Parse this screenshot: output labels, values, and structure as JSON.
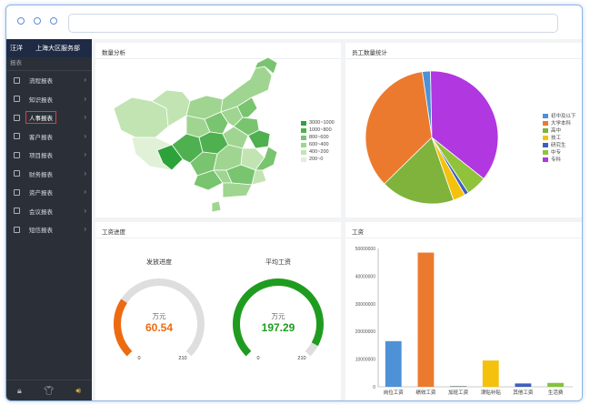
{
  "sidebar": {
    "user": "汪洋",
    "org": "上海大区服务部",
    "section": "报表",
    "items": [
      {
        "label": "流程报表",
        "icon": "doc-icon"
      },
      {
        "label": "知识报表",
        "icon": "doc-icon"
      },
      {
        "label": "人事报表",
        "icon": "person-doc-icon",
        "active": true
      },
      {
        "label": "客户报表",
        "icon": "doc-icon"
      },
      {
        "label": "项目报表",
        "icon": "doc-icon"
      },
      {
        "label": "财务报表",
        "icon": "doc-icon"
      },
      {
        "label": "资产报表",
        "icon": "doc-icon"
      },
      {
        "label": "会议报表",
        "icon": "meeting-icon"
      },
      {
        "label": "短信报表",
        "icon": "sms-icon"
      }
    ],
    "footer_icons": [
      "lock-icon",
      "shirt-icon",
      "speaker-icon"
    ]
  },
  "panels": {
    "map_title": "数量分析",
    "pie_title": "员工数量统计",
    "gauge_title": "工资进度",
    "bar_title": "工资"
  },
  "map_legend": [
    {
      "label": "3000~1000",
      "color": "#2ea23a"
    },
    {
      "label": "1000~800",
      "color": "#4fb04f"
    },
    {
      "label": "800~600",
      "color": "#79c46f"
    },
    {
      "label": "600~400",
      "color": "#9fd590"
    },
    {
      "label": "400~200",
      "color": "#c2e4b3"
    },
    {
      "label": "200~0",
      "color": "#e0f1d7"
    }
  ],
  "gauges": [
    {
      "label": "发放进度",
      "unit": "万元",
      "value": "60.54",
      "min": "0",
      "max": "210",
      "color": "#ee6a10",
      "fraction": 0.29
    },
    {
      "label": "平均工资",
      "unit": "万元",
      "value": "197.29",
      "min": "0",
      "max": "210",
      "color": "#1f9c1f",
      "fraction": 0.94
    }
  ],
  "chart_data": [
    {
      "type": "pie",
      "title": "员工数量统计",
      "legend_position": "right",
      "series": [
        {
          "name": "初中及以下",
          "value": 2,
          "color": "#4f91d6"
        },
        {
          "name": "大学本科",
          "value": 35,
          "color": "#ec7a2e"
        },
        {
          "name": "高中",
          "value": 18,
          "color": "#7fb33c"
        },
        {
          "name": "技工",
          "value": 3,
          "color": "#f4c20d"
        },
        {
          "name": "研究生",
          "value": 1,
          "color": "#3d5fbd"
        },
        {
          "name": "中专",
          "value": 5,
          "color": "#90c23a"
        },
        {
          "name": "专科",
          "value": 36,
          "color": "#b137e0"
        }
      ]
    },
    {
      "type": "bar",
      "title": "工资",
      "categories": [
        "岗位工资",
        "绩效工资",
        "加班工资",
        "津贴补贴",
        "其他工资",
        "生活费"
      ],
      "values": [
        16500000,
        48500000,
        300000,
        9500000,
        1200000,
        1400000
      ],
      "colors": [
        "#4f91d6",
        "#ec7a2e",
        "#8c9a8c",
        "#f4c20d",
        "#3d5fbd",
        "#7fc43a"
      ],
      "ylim": [
        0,
        50000000
      ],
      "yticks": [
        "0",
        "10000000",
        "20000000",
        "30000000",
        "40000000",
        "50000000"
      ],
      "grid": false
    }
  ]
}
